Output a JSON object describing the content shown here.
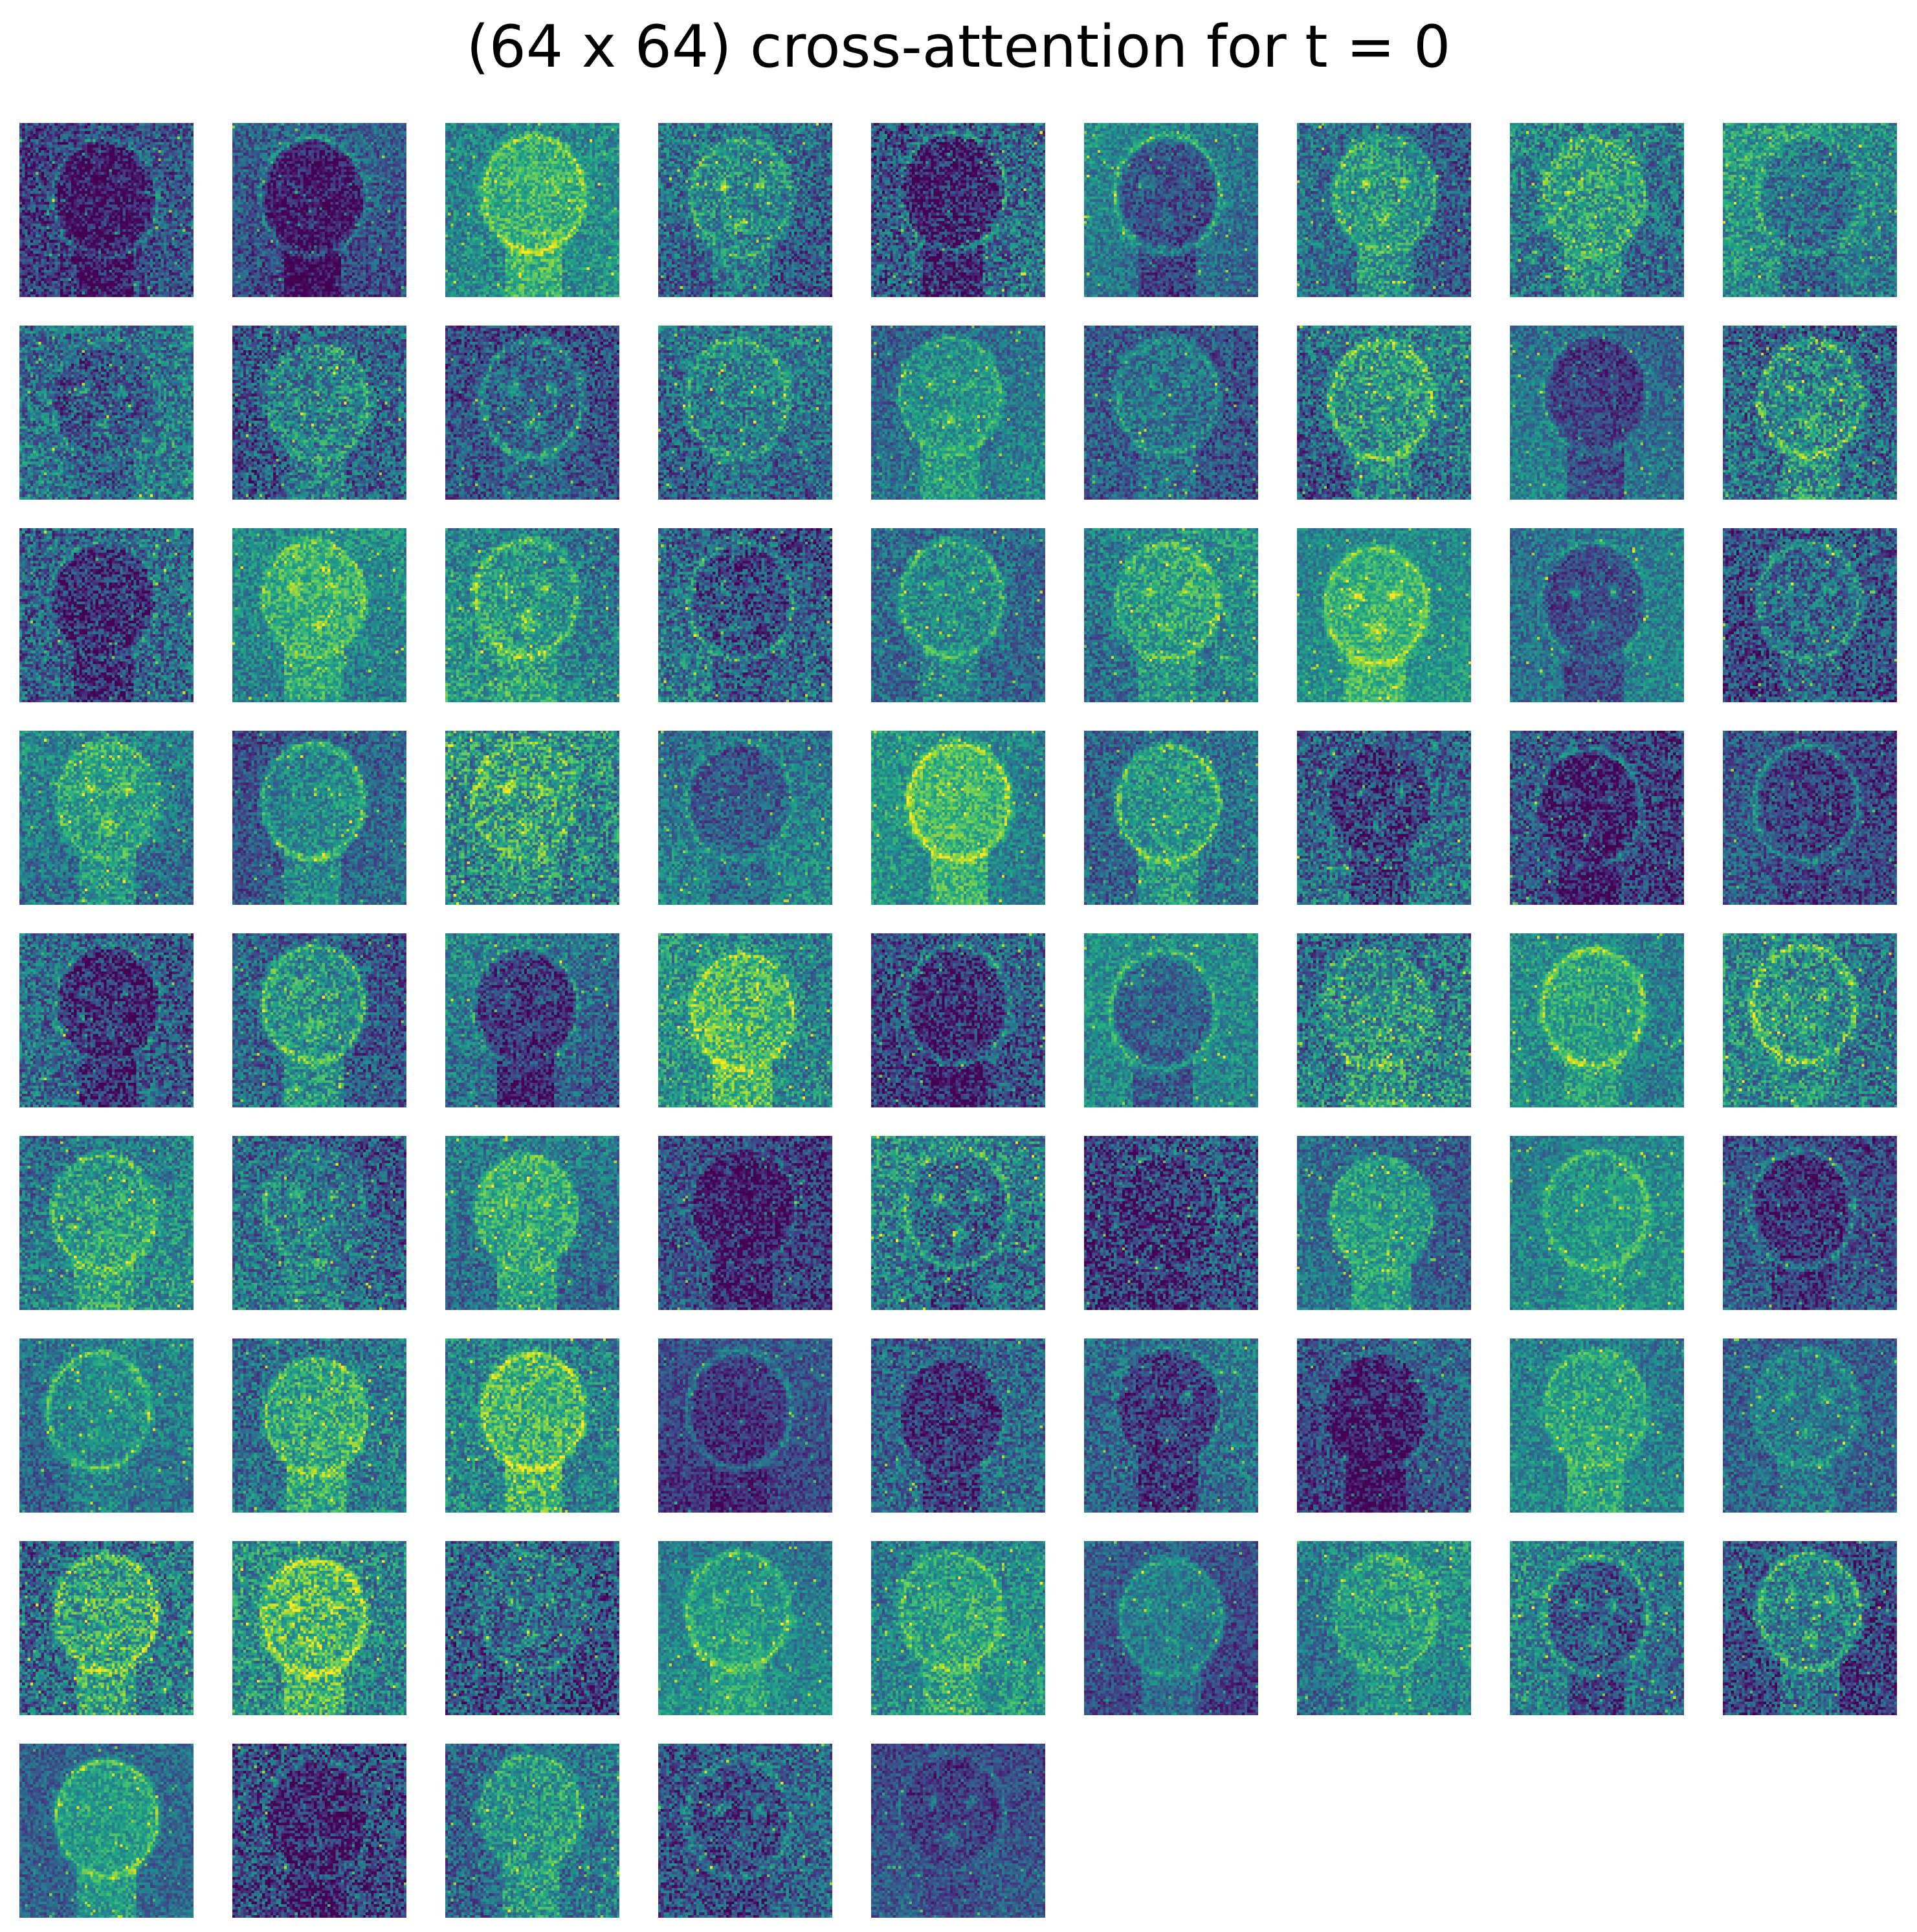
{
  "figure": {
    "title": "(64 x 64) cross-attention for t = 0",
    "colormap": "viridis",
    "panel_count": 77,
    "columns": 9,
    "rows": 9,
    "map_resolution": "64 x 64",
    "colors": {
      "low": "#440154",
      "mid": "#21918c",
      "high": "#fde725",
      "background": "#ffffff"
    }
  }
}
